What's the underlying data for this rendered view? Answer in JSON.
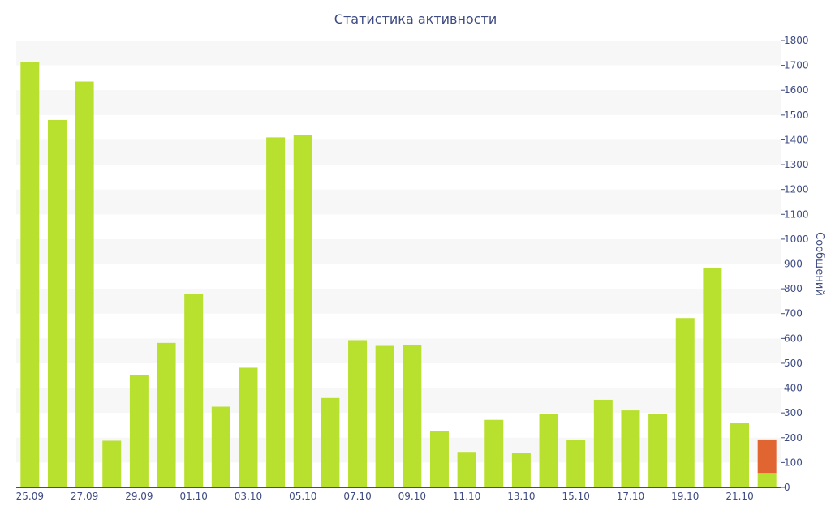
{
  "chart_data": {
    "type": "bar",
    "title": "Статистика активности",
    "ylabel": "Сообщений",
    "xlabel": "",
    "ylim": [
      0,
      1800
    ],
    "yticks": [
      0,
      100,
      200,
      300,
      400,
      500,
      600,
      700,
      800,
      900,
      1000,
      1100,
      1200,
      1300,
      1400,
      1500,
      1600,
      1700,
      1800
    ],
    "y_axis_side": "right",
    "grid": "alternating horizontal bands",
    "categories": [
      "25.09",
      "26.09",
      "27.09",
      "28.09",
      "29.09",
      "30.09",
      "01.10",
      "02.10",
      "03.10",
      "04.10",
      "05.10",
      "06.10",
      "07.10",
      "08.10",
      "09.10",
      "10.10",
      "11.10",
      "12.10",
      "13.10",
      "14.10",
      "15.10",
      "16.10",
      "17.10",
      "18.10",
      "19.10",
      "20.10",
      "21.10",
      "22.10"
    ],
    "x_tick_labels": [
      "25.09",
      "27.09",
      "29.09",
      "01.10",
      "03.10",
      "05.10",
      "07.10",
      "09.10",
      "11.10",
      "13.10",
      "15.10",
      "17.10",
      "19.10",
      "21.10"
    ],
    "series": [
      {
        "color": "#b8e02e",
        "values": [
          1715,
          1480,
          1635,
          188,
          452,
          582,
          780,
          325,
          482,
          1410,
          1418,
          360,
          593,
          570,
          575,
          228,
          143,
          272,
          138,
          297,
          190,
          353,
          310,
          297,
          682,
          882,
          258,
          58
        ]
      },
      {
        "color": "#e06530",
        "values": [
          0,
          0,
          0,
          0,
          0,
          0,
          0,
          0,
          0,
          0,
          0,
          0,
          0,
          0,
          0,
          0,
          0,
          0,
          0,
          0,
          0,
          0,
          0,
          0,
          0,
          0,
          0,
          135
        ]
      }
    ]
  }
}
